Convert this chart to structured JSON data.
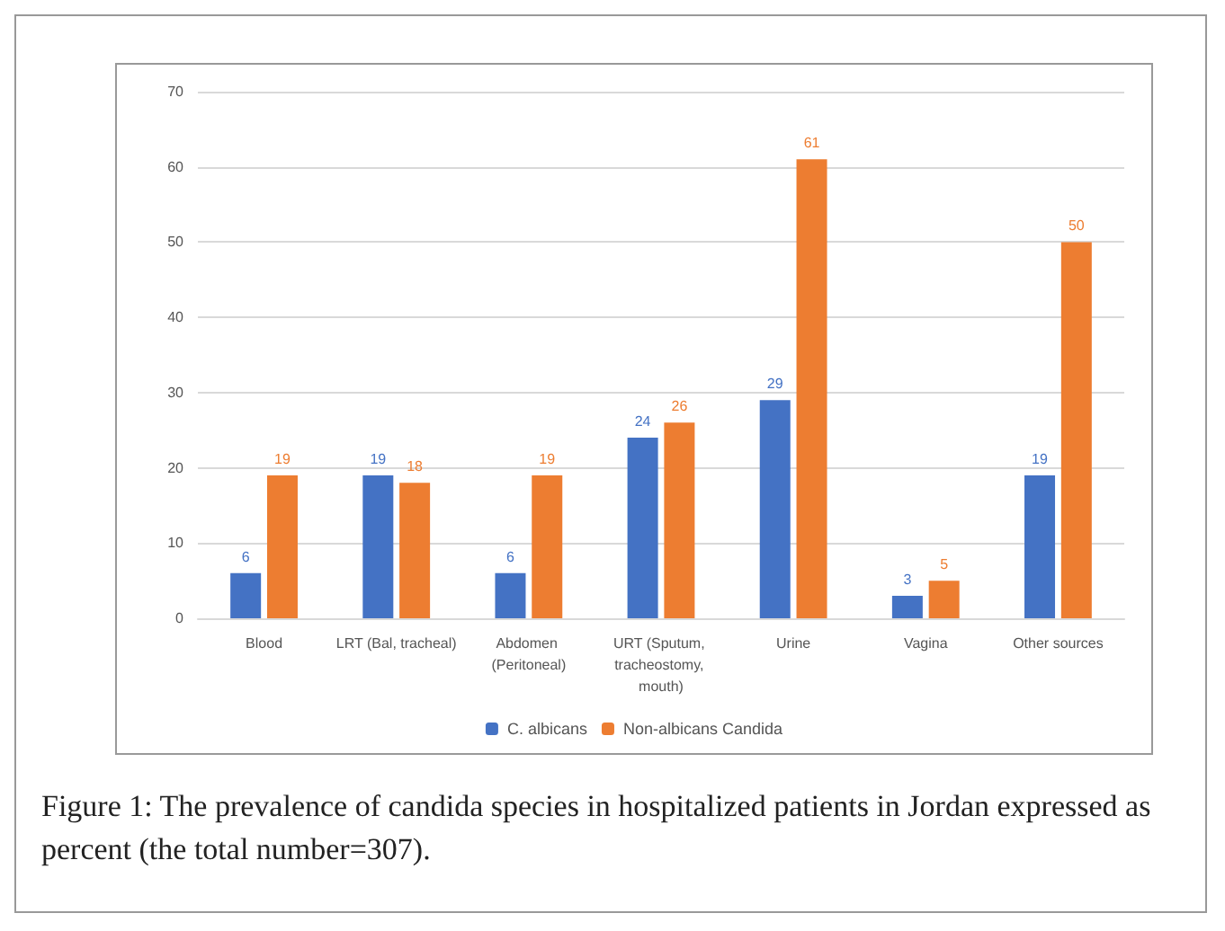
{
  "chart_data": {
    "type": "bar",
    "categories": [
      "Blood",
      "LRT (Bal, tracheal)",
      "Abdomen (Peritoneal)",
      "URT (Sputum, tracheostomy, mouth)",
      "Urine",
      "Vagina",
      "Other sources"
    ],
    "series": [
      {
        "name": "C. albicans",
        "color": "#4472c4",
        "values": [
          6,
          19,
          6,
          24,
          29,
          3,
          19
        ]
      },
      {
        "name": "Non-albicans Candida",
        "color": "#ed7d31",
        "values": [
          19,
          18,
          19,
          26,
          61,
          5,
          50
        ]
      }
    ],
    "ylim": [
      0,
      70
    ],
    "yticks": [
      0,
      10,
      20,
      30,
      40,
      50,
      60,
      70
    ],
    "grid": "y",
    "legend": "bottom",
    "data_labels": true,
    "annotations": [
      "Figure 1: The prevalence of candida species in hospitalized patients in Jordan expressed as percent (the total number=307)."
    ]
  }
}
